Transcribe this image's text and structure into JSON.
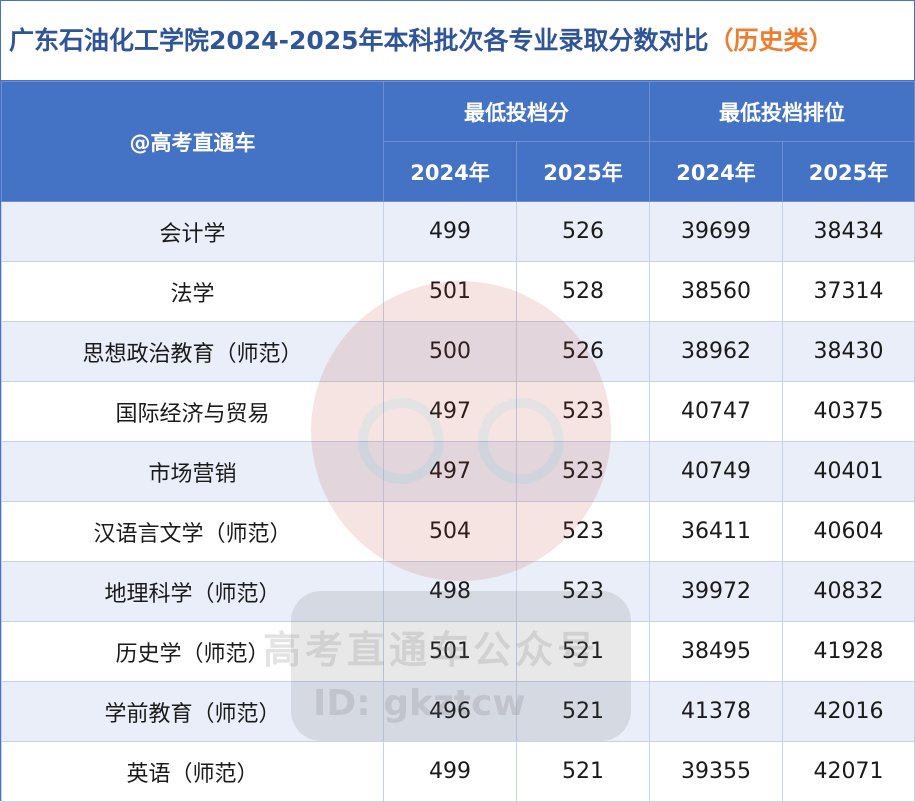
{
  "title": {
    "main": "广东石油化工学院2024-2025年本科批次各专业录取分数对比",
    "tag": "（历史类）"
  },
  "header": {
    "corner": "@高考直通车",
    "group_score": "最低投档分",
    "group_rank": "最低投档排位",
    "years": [
      "2024年",
      "2025年",
      "2024年",
      "2025年"
    ]
  },
  "rows": [
    {
      "major": "会计学",
      "score_2024": "499",
      "score_2025": "526",
      "rank_2024": "39699",
      "rank_2025": "38434"
    },
    {
      "major": "法学",
      "score_2024": "501",
      "score_2025": "528",
      "rank_2024": "38560",
      "rank_2025": "37314"
    },
    {
      "major": "思想政治教育（师范）",
      "score_2024": "500",
      "score_2025": "526",
      "rank_2024": "38962",
      "rank_2025": "38430"
    },
    {
      "major": "国际经济与贸易",
      "score_2024": "497",
      "score_2025": "523",
      "rank_2024": "40747",
      "rank_2025": "40375"
    },
    {
      "major": "市场营销",
      "score_2024": "497",
      "score_2025": "523",
      "rank_2024": "40749",
      "rank_2025": "40401"
    },
    {
      "major": "汉语言文学（师范）",
      "score_2024": "504",
      "score_2025": "523",
      "rank_2024": "36411",
      "rank_2025": "40604"
    },
    {
      "major": "地理科学（师范）",
      "score_2024": "498",
      "score_2025": "523",
      "rank_2024": "39972",
      "rank_2025": "40832"
    },
    {
      "major": "历史学（师范）",
      "score_2024": "501",
      "score_2025": "521",
      "rank_2024": "38495",
      "rank_2025": "41928"
    },
    {
      "major": "学前教育（师范）",
      "score_2024": "496",
      "score_2025": "521",
      "rank_2024": "41378",
      "rank_2025": "42016"
    },
    {
      "major": "英语（师范）",
      "score_2024": "499",
      "score_2025": "521",
      "rank_2024": "39355",
      "rank_2025": "42071"
    }
  ],
  "watermark": {
    "line1": "高考直通车公众号",
    "line2": "ID: gkztcw"
  },
  "colors": {
    "header_bg": "#4472c4",
    "title_text": "#2f5597",
    "tag_text": "#ed7d31",
    "stripe": "#e9eef8"
  }
}
